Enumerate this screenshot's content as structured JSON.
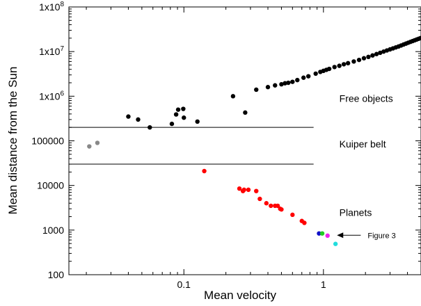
{
  "chart_data": {
    "type": "scatter",
    "x_scale": "log",
    "y_scale": "log",
    "xlim": [
      0.015,
      5
    ],
    "ylim": [
      100,
      100000000
    ],
    "xlabel": "Mean velocity",
    "ylabel": "Mean distance from the Sun",
    "grid": false,
    "x_ticks": [
      {
        "value": 0.1,
        "label": "0.1"
      },
      {
        "value": 1,
        "label": "1"
      }
    ],
    "y_ticks": [
      {
        "value": 100,
        "label": "100",
        "sup": ""
      },
      {
        "value": 1000,
        "label": "1000",
        "sup": ""
      },
      {
        "value": 10000,
        "label": "10000",
        "sup": ""
      },
      {
        "value": 100000,
        "label": "100000",
        "sup": ""
      },
      {
        "value": 1000000,
        "label": "1x10",
        "sup": "6"
      },
      {
        "value": 10000000,
        "label": "1x10",
        "sup": "7"
      },
      {
        "value": 100000000,
        "label": "1x10",
        "sup": "8"
      }
    ],
    "reference_lines": [
      {
        "y": 200000,
        "x_from": 0.015,
        "x_to": 0.85
      },
      {
        "y": 30000,
        "x_from": 0.015,
        "x_to": 0.85
      }
    ],
    "regions": [
      {
        "label": "Free objects",
        "x": 1.3,
        "y": 900000
      },
      {
        "label": "Kuiper belt",
        "x": 1.3,
        "y": 85000
      },
      {
        "label": "Planets",
        "x": 1.3,
        "y": 2500
      }
    ],
    "annotation": {
      "label": "Figure 3",
      "arrow_from": [
        1.85,
        765
      ],
      "arrow_to": [
        1.25,
        765
      ]
    },
    "series": [
      {
        "color": "#000000",
        "points": [
          [
            0.04,
            350000
          ],
          [
            0.047,
            300000
          ],
          [
            0.057,
            200000
          ],
          [
            0.082,
            240000
          ],
          [
            0.088,
            390000
          ],
          [
            0.091,
            500000
          ],
          [
            0.099,
            520000
          ],
          [
            0.1,
            330000
          ],
          [
            0.125,
            270000
          ],
          [
            0.225,
            1000000
          ],
          [
            0.275,
            430000
          ],
          [
            0.33,
            1400000
          ],
          [
            0.4,
            1600000
          ],
          [
            0.45,
            1750000
          ],
          [
            0.5,
            1850000
          ],
          [
            0.53,
            1950000
          ],
          [
            0.56,
            2000000
          ],
          [
            0.6,
            2100000
          ],
          [
            0.65,
            2300000
          ],
          [
            0.72,
            2600000
          ],
          [
            0.78,
            2800000
          ],
          [
            0.88,
            3200000
          ],
          [
            0.95,
            3500000
          ],
          [
            1.0,
            3700000
          ],
          [
            1.05,
            3900000
          ],
          [
            1.1,
            4100000
          ],
          [
            1.2,
            4500000
          ],
          [
            1.3,
            4800000
          ],
          [
            1.4,
            5200000
          ],
          [
            1.5,
            5500000
          ],
          [
            1.65,
            6000000
          ],
          [
            1.8,
            6500000
          ],
          [
            1.95,
            7100000
          ],
          [
            2.1,
            7600000
          ],
          [
            2.25,
            8200000
          ],
          [
            2.4,
            8800000
          ],
          [
            2.55,
            9400000
          ],
          [
            2.7,
            10000000
          ],
          [
            2.85,
            10600000
          ],
          [
            3.0,
            11200000
          ],
          [
            3.15,
            11800000
          ],
          [
            3.3,
            12400000
          ],
          [
            3.45,
            13000000
          ],
          [
            3.6,
            13700000
          ],
          [
            3.75,
            14400000
          ],
          [
            3.9,
            15100000
          ],
          [
            4.05,
            15800000
          ],
          [
            4.2,
            16500000
          ],
          [
            4.35,
            17200000
          ],
          [
            4.5,
            17900000
          ],
          [
            4.65,
            18600000
          ],
          [
            4.8,
            19300000
          ],
          [
            4.95,
            20000000
          ]
        ]
      },
      {
        "color": "#888888",
        "points": [
          [
            0.021,
            75000
          ],
          [
            0.024,
            90000
          ]
        ]
      },
      {
        "color": "#ff0000",
        "points": [
          [
            0.14,
            21000
          ],
          [
            0.25,
            8500
          ],
          [
            0.265,
            7500
          ],
          [
            0.27,
            8000
          ],
          [
            0.29,
            8000
          ],
          [
            0.33,
            7500
          ],
          [
            0.35,
            5000
          ],
          [
            0.39,
            4000
          ],
          [
            0.42,
            3500
          ],
          [
            0.45,
            3500
          ],
          [
            0.47,
            3500
          ],
          [
            0.49,
            3000
          ],
          [
            0.5,
            2900
          ],
          [
            0.6,
            2200
          ],
          [
            0.7,
            1600
          ],
          [
            0.73,
            1450
          ]
        ]
      },
      {
        "color": "#1010c8",
        "points": [
          [
            0.93,
            840
          ]
        ]
      },
      {
        "color": "#22cc22",
        "points": [
          [
            0.98,
            840
          ]
        ]
      },
      {
        "color": "#ee22ee",
        "points": [
          [
            1.07,
            750
          ]
        ]
      },
      {
        "color": "#22dddd",
        "points": [
          [
            1.22,
            490
          ]
        ]
      }
    ]
  }
}
